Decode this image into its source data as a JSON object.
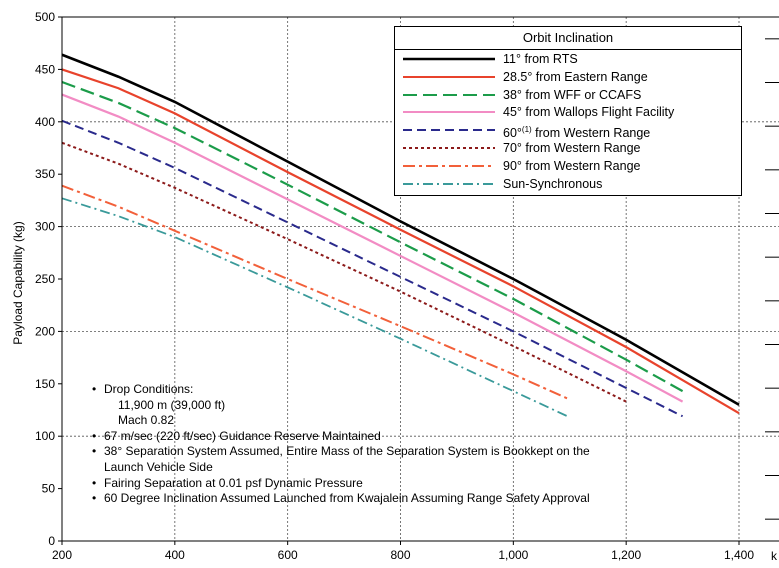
{
  "chart_data": {
    "type": "line",
    "title": "",
    "xlabel": "k",
    "ylabel": "Payload Capability (kg)",
    "xlim": [
      200,
      1400
    ],
    "ylim": [
      0,
      500
    ],
    "x_ticks": [
      200,
      400,
      600,
      800,
      1000,
      1200,
      1400
    ],
    "x_tick_labels": [
      "200",
      "400",
      "600",
      "800",
      "1,000",
      "1,200",
      "1,400"
    ],
    "y_ticks": [
      0,
      50,
      100,
      150,
      200,
      250,
      300,
      350,
      400,
      450,
      500
    ],
    "y_tick_labels": [
      "0",
      "50",
      "100",
      "150",
      "200",
      "250",
      "300",
      "350",
      "400",
      "450",
      "500"
    ],
    "grid": true,
    "legend_title": "Orbit Inclination",
    "legend_position": "top-right",
    "series": [
      {
        "name": "11° from RTS",
        "color": "#000000",
        "dash": "solid",
        "x": [
          200,
          300,
          400,
          600,
          800,
          1000,
          1200,
          1400
        ],
        "y": [
          464,
          443,
          419,
          362,
          305,
          250,
          192,
          130
        ]
      },
      {
        "name": "28.5° from Eastern Range",
        "color": "#e8432c",
        "dash": "solid",
        "x": [
          200,
          300,
          400,
          600,
          800,
          1000,
          1200,
          1400
        ],
        "y": [
          450,
          432,
          408,
          352,
          297,
          243,
          185,
          122
        ]
      },
      {
        "name": "38° from WFF or CCAFS",
        "color": "#1c9c4a",
        "dash": "longdash",
        "x": [
          200,
          300,
          400,
          600,
          800,
          1000,
          1200,
          1300
        ],
        "y": [
          438,
          418,
          394,
          340,
          285,
          231,
          173,
          143
        ]
      },
      {
        "name": "45° from Wallops Flight Facility",
        "color": "#f28cc4",
        "dash": "solid",
        "x": [
          200,
          300,
          400,
          600,
          800,
          1000,
          1200,
          1300
        ],
        "y": [
          426,
          405,
          380,
          326,
          272,
          218,
          162,
          133
        ]
      },
      {
        "name": "60°(1) from Western Range",
        "color": "#2a2a8c",
        "dash": "dash",
        "x": [
          200,
          300,
          400,
          600,
          800,
          1000,
          1200,
          1300
        ],
        "y": [
          401,
          380,
          356,
          304,
          252,
          200,
          146,
          119
        ]
      },
      {
        "name": "70° from Western Range",
        "color": "#8c1a1a",
        "dash": "dot",
        "x": [
          200,
          300,
          400,
          600,
          800,
          1000,
          1200
        ],
        "y": [
          380,
          360,
          337,
          288,
          238,
          186,
          133
        ]
      },
      {
        "name": "90° from Western Range",
        "color": "#f2603a",
        "dash": "dashdot",
        "x": [
          200,
          300,
          400,
          600,
          800,
          1000,
          1100
        ],
        "y": [
          339,
          319,
          296,
          250,
          205,
          159,
          135
        ]
      },
      {
        "name": "Sun-Synchronous",
        "color": "#3a9a9a",
        "dash": "dashdot-light",
        "x": [
          200,
          300,
          400,
          600,
          800,
          1000,
          1100
        ],
        "y": [
          327,
          310,
          290,
          242,
          193,
          143,
          118
        ]
      }
    ],
    "legend_superscript": "(1)",
    "notes": [
      {
        "text": "Drop Conditions:",
        "bullet": true
      },
      {
        "text": "11,900 m (39,000 ft)",
        "bullet": false
      },
      {
        "text": "Mach 0.82",
        "bullet": false
      },
      {
        "text": "67 m/sec (220 ft/sec) Guidance Reserve Maintained",
        "bullet": true
      },
      {
        "text": "38° Separation System Assumed, Entire Mass of the Separation System is Bookkept on the",
        "bullet": true
      },
      {
        "text": "Launch Vehicle Side",
        "bullet": false,
        "indent": "small"
      },
      {
        "text": "Fairing Separation at 0.01 psf Dynamic Pressure",
        "bullet": true
      },
      {
        "text": "60 Degree Inclination Assumed Launched from Kwajalein Assuming Range Safety Approval",
        "bullet": true
      }
    ]
  }
}
